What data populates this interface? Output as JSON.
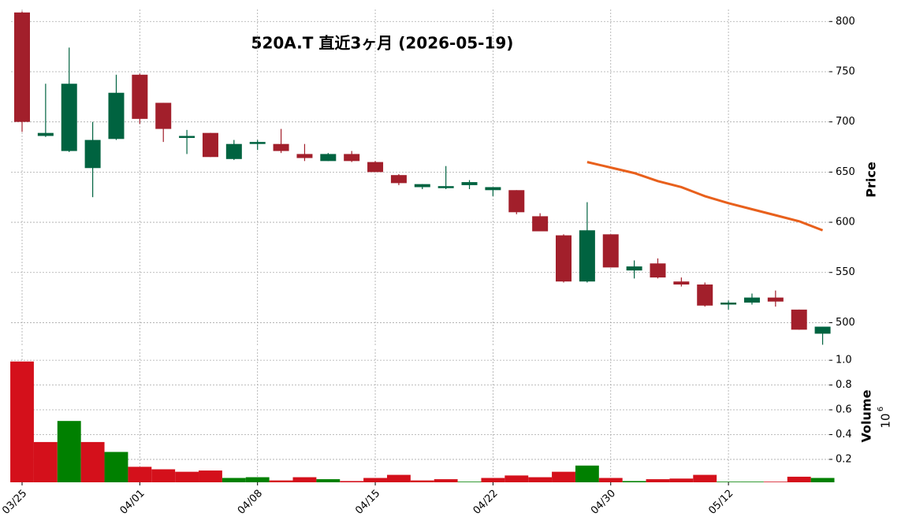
{
  "chart_data": {
    "type": "candlestick",
    "title": "520A.T  直近3ヶ月 (2026-05-19)",
    "categories": [
      "03/25",
      null,
      null,
      null,
      null,
      "04/01",
      null,
      null,
      null,
      null,
      "04/08",
      null,
      null,
      null,
      null,
      "04/15",
      null,
      null,
      null,
      null,
      "04/22",
      null,
      null,
      null,
      null,
      "04/30",
      null,
      null,
      null,
      null,
      "05/12",
      null,
      null,
      null,
      null
    ],
    "open": [
      809,
      686,
      671,
      654,
      683,
      747,
      719,
      684,
      689,
      663,
      678,
      678,
      668,
      661,
      668,
      660,
      647,
      635,
      634,
      637,
      632,
      632,
      606,
      587,
      541,
      588,
      552,
      559,
      541,
      538,
      518,
      520,
      525,
      513,
      489
    ],
    "high": [
      810,
      738,
      774,
      700,
      747,
      748,
      719,
      692,
      689,
      682,
      682,
      693,
      678,
      669,
      671,
      661,
      648,
      638,
      656,
      642,
      635,
      632,
      609,
      588,
      620,
      588,
      562,
      564,
      545,
      540,
      522,
      529,
      532,
      513,
      496
    ],
    "low": [
      690,
      685,
      670,
      625,
      682,
      698,
      680,
      668,
      665,
      662,
      672,
      669,
      661,
      661,
      660,
      650,
      637,
      633,
      633,
      633,
      626,
      608,
      591,
      540,
      540,
      555,
      544,
      544,
      536,
      516,
      513,
      518,
      516,
      493,
      478
    ],
    "close": [
      700,
      689,
      738,
      682,
      729,
      703,
      693,
      686,
      665,
      678,
      680,
      671,
      664,
      668,
      661,
      650,
      639,
      638,
      636,
      640,
      635,
      610,
      591,
      541,
      592,
      555,
      556,
      545,
      538,
      517,
      520,
      525,
      521,
      493,
      496
    ],
    "up_color": "#006340",
    "down_color": "#a21f2b",
    "overlay": {
      "color": "#e8601c",
      "values": [
        null,
        null,
        null,
        null,
        null,
        null,
        null,
        null,
        null,
        null,
        null,
        null,
        null,
        null,
        null,
        null,
        null,
        null,
        null,
        null,
        null,
        null,
        null,
        null,
        660,
        654.5,
        649,
        641,
        635,
        626,
        619,
        613,
        607,
        601,
        592
      ]
    },
    "ylabel": "Price",
    "ylim": [
      476,
      812
    ],
    "yticks": [
      500,
      550,
      600,
      650,
      700,
      750,
      800
    ],
    "volume": [
      0.99,
      0.34,
      0.51,
      0.34,
      0.26,
      0.14,
      0.12,
      0.1,
      0.11,
      0.05,
      0.056,
      0.03,
      0.056,
      0.04,
      0.025,
      0.05,
      0.075,
      0.03,
      0.04,
      0.02,
      0.05,
      0.07,
      0.056,
      0.1,
      0.15,
      0.05,
      0.025,
      0.04,
      0.045,
      0.075,
      0.02,
      0.02,
      0.02,
      0.06,
      0.05
    ],
    "volume_up_color": "#008000",
    "volume_down_color": "#d4101b",
    "volume_label": "Volume",
    "volume_offset": "10",
    "volume_offset_exp": "6",
    "vlim": [
      0.015,
      1.09
    ],
    "vticks": [
      0.2,
      0.4,
      0.6,
      0.8,
      {
        "value": 1,
        "label": "1.0"
      }
    ],
    "grid": true
  }
}
